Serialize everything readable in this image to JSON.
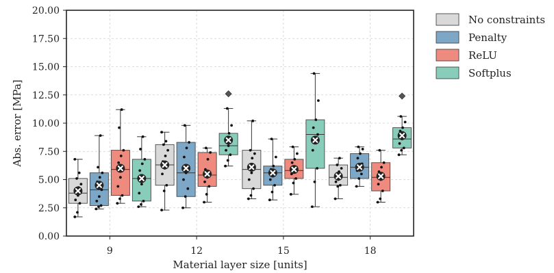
{
  "chart_data": {
    "type": "boxplot",
    "xlabel": "Material layer size [units]",
    "ylabel": "Abs. error [MPa]",
    "ylim": [
      0,
      20
    ],
    "yticks": [
      0,
      2.5,
      5,
      7.5,
      10,
      12.5,
      15,
      17.5,
      20
    ],
    "ytick_labels": [
      "0.00",
      "2.50",
      "5.00",
      "7.50",
      "10.00",
      "12.50",
      "15.00",
      "17.50",
      "20.00"
    ],
    "categories": [
      "9",
      "12",
      "15",
      "18"
    ],
    "grid": true,
    "legend_position": "right, outside plot",
    "series": [
      {
        "name": "No constraints",
        "color": "#d9d9d9",
        "boxes": [
          {
            "q1": 2.9,
            "median": 3.8,
            "q3": 5.1,
            "whislo": 1.7,
            "whishi": 6.8,
            "mean": 4.0,
            "outliers": [],
            "points": [
              1.7,
              2.1,
              2.9,
              3.2,
              3.6,
              3.8,
              4.0,
              4.3,
              4.6,
              5.1,
              5.6,
              6.8
            ]
          },
          {
            "q1": 4.5,
            "median": 6.3,
            "q3": 8.1,
            "whislo": 2.3,
            "whishi": 9.2,
            "mean": 6.3,
            "outliers": [],
            "points": [
              2.3,
              4.0,
              4.5,
              5.5,
              6.0,
              6.3,
              6.6,
              7.1,
              7.6,
              8.1,
              8.4,
              9.2
            ]
          },
          {
            "q1": 4.2,
            "median": 5.9,
            "q3": 7.6,
            "whislo": 3.3,
            "whishi": 10.2,
            "mean": 6.1,
            "outliers": [],
            "points": [
              3.3,
              3.6,
              4.2,
              5.0,
              5.6,
              5.9,
              6.2,
              6.9,
              7.3,
              7.6,
              10.2
            ]
          },
          {
            "q1": 4.5,
            "median": 5.2,
            "q3": 6.3,
            "whislo": 3.3,
            "whishi": 6.9,
            "mean": 5.3,
            "outliers": [],
            "points": [
              3.3,
              4.4,
              4.5,
              4.8,
              5.0,
              5.2,
              5.4,
              5.7,
              6.0,
              6.3,
              6.9
            ]
          }
        ]
      },
      {
        "name": "Penalty",
        "color": "#7da7c7",
        "boxes": [
          {
            "q1": 2.7,
            "median": 4.1,
            "q3": 5.6,
            "whislo": 2.4,
            "whishi": 8.9,
            "mean": 4.5,
            "outliers": [],
            "points": [
              2.4,
              2.6,
              2.7,
              3.1,
              3.5,
              4.1,
              4.8,
              5.2,
              5.6,
              6.1,
              8.9
            ]
          },
          {
            "q1": 3.5,
            "median": 5.6,
            "q3": 8.3,
            "whislo": 2.5,
            "whishi": 9.8,
            "mean": 6.0,
            "outliers": [],
            "points": [
              2.5,
              3.5,
              4.2,
              5.0,
              5.6,
              6.2,
              7.0,
              7.8,
              8.3,
              9.8
            ]
          },
          {
            "q1": 4.5,
            "median": 5.6,
            "q3": 6.2,
            "whislo": 3.2,
            "whishi": 8.6,
            "mean": 5.6,
            "outliers": [],
            "points": [
              3.2,
              3.9,
              4.5,
              5.0,
              5.3,
              5.6,
              5.9,
              6.2,
              7.0,
              8.6
            ]
          },
          {
            "q1": 5.1,
            "median": 6.1,
            "q3": 7.3,
            "whislo": 4.4,
            "whishi": 7.9,
            "mean": 6.1,
            "outliers": [],
            "points": [
              4.4,
              5.1,
              5.5,
              5.8,
              6.1,
              6.4,
              6.9,
              7.3,
              7.7,
              7.9
            ]
          }
        ]
      },
      {
        "name": "ReLU",
        "color": "#ef8a7e",
        "boxes": [
          {
            "q1": 3.6,
            "median": 5.9,
            "q3": 7.6,
            "whislo": 2.9,
            "whishi": 11.2,
            "mean": 6.0,
            "outliers": [],
            "points": [
              2.9,
              3.3,
              3.6,
              4.4,
              5.2,
              5.9,
              6.5,
              7.1,
              7.6,
              9.6,
              11.2
            ]
          },
          {
            "q1": 4.4,
            "median": 5.4,
            "q3": 7.4,
            "whislo": 3.0,
            "whishi": 7.8,
            "mean": 5.5,
            "outliers": [],
            "points": [
              3.0,
              3.7,
              4.4,
              4.8,
              5.2,
              5.4,
              5.9,
              6.8,
              7.4,
              7.8
            ]
          },
          {
            "q1": 5.1,
            "median": 5.8,
            "q3": 6.8,
            "whislo": 3.7,
            "whishi": 7.9,
            "mean": 5.9,
            "outliers": [],
            "points": [
              3.7,
              4.7,
              5.1,
              5.5,
              5.8,
              6.1,
              6.5,
              6.8,
              7.3,
              7.9
            ]
          },
          {
            "q1": 4.0,
            "median": 5.2,
            "q3": 6.5,
            "whislo": 3.0,
            "whishi": 7.6,
            "mean": 5.3,
            "outliers": [],
            "points": [
              3.0,
              3.3,
              4.0,
              4.6,
              5.0,
              5.2,
              5.7,
              6.1,
              6.5,
              7.6
            ]
          }
        ]
      },
      {
        "name": "Softplus",
        "color": "#87cdb9",
        "boxes": [
          {
            "q1": 3.1,
            "median": 5.1,
            "q3": 6.8,
            "whislo": 2.6,
            "whishi": 8.8,
            "mean": 5.1,
            "outliers": [],
            "points": [
              2.6,
              2.8,
              3.1,
              3.8,
              4.6,
              5.1,
              5.8,
              6.4,
              6.8,
              7.7,
              8.8
            ]
          },
          {
            "q1": 7.2,
            "median": 8.0,
            "q3": 9.1,
            "whislo": 6.2,
            "whishi": 11.3,
            "mean": 8.5,
            "outliers": [
              12.6
            ],
            "points": [
              6.2,
              6.7,
              7.2,
              7.6,
              8.0,
              8.4,
              8.7,
              9.1,
              9.8,
              11.3
            ]
          },
          {
            "q1": 6.0,
            "median": 9.0,
            "q3": 10.3,
            "whislo": 2.6,
            "whishi": 14.4,
            "mean": 8.5,
            "outliers": [],
            "points": [
              2.6,
              4.8,
              6.0,
              7.6,
              8.6,
              9.0,
              9.6,
              10.3,
              12.0,
              14.4
            ]
          },
          {
            "q1": 7.8,
            "median": 8.6,
            "q3": 9.6,
            "whislo": 7.2,
            "whishi": 10.6,
            "mean": 8.9,
            "outliers": [
              12.4
            ],
            "points": [
              7.2,
              7.6,
              7.8,
              8.2,
              8.6,
              9.0,
              9.3,
              9.6,
              10.1,
              10.6
            ]
          }
        ]
      }
    ]
  }
}
